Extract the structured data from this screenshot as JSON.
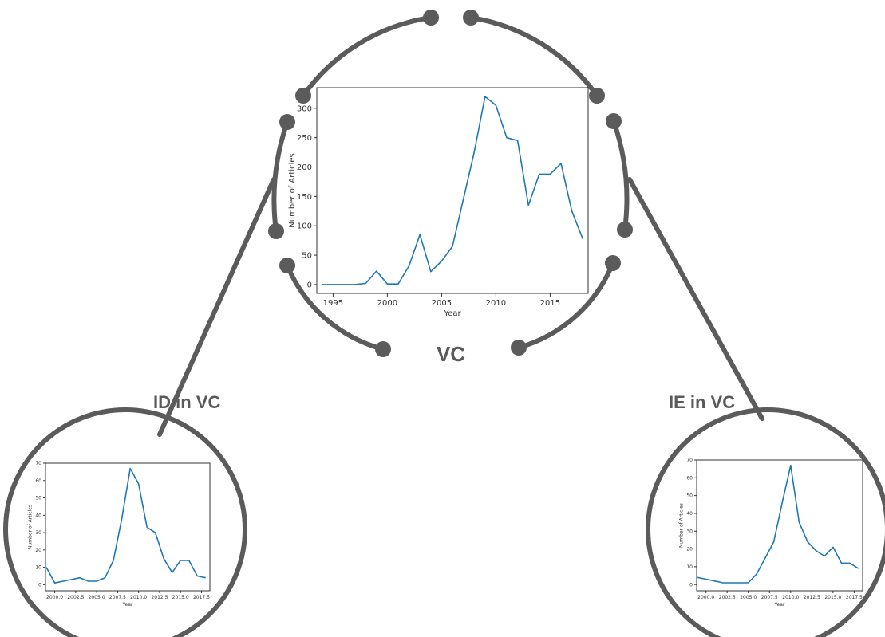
{
  "labels": {
    "main": "VC",
    "left": "ID in VC",
    "right": "IE in VC"
  },
  "colors": {
    "ring": "#5b5b5b",
    "line": "#1f77b4",
    "label": "#595959"
  },
  "chart_data": [
    {
      "id": "vc",
      "type": "line",
      "title": "",
      "xlabel": "Year",
      "ylabel": "Number of Articles",
      "xlim": [
        1993.5,
        2018.5
      ],
      "ylim": [
        -15,
        335
      ],
      "xticks": [
        1995,
        2000,
        2005,
        2010,
        2015
      ],
      "xticklabels": [
        "1995",
        "2000",
        "2005",
        "2010",
        "2015"
      ],
      "yticks": [
        0,
        50,
        100,
        150,
        200,
        250,
        300
      ],
      "yticklabels": [
        "0",
        "50",
        "100",
        "150",
        "200",
        "250",
        "300"
      ],
      "x": [
        1994,
        1995,
        1996,
        1997,
        1998,
        1999,
        2000,
        2001,
        2002,
        2003,
        2004,
        2005,
        2006,
        2007,
        2008,
        2009,
        2010,
        2011,
        2012,
        2013,
        2014,
        2015,
        2016,
        2017,
        2018
      ],
      "y": [
        0,
        0,
        0,
        0,
        2,
        23,
        1,
        1,
        32,
        85,
        22,
        40,
        65,
        145,
        225,
        320,
        305,
        250,
        245,
        135,
        188,
        188,
        206,
        125,
        78
      ]
    },
    {
      "id": "id",
      "type": "line",
      "title": "",
      "xlabel": "Year",
      "ylabel": "Number of Articles",
      "xlim": [
        1998.9,
        2018.5
      ],
      "ylim": [
        -3.5,
        70
      ],
      "xticks": [
        2000,
        2002.5,
        2005,
        2007.5,
        2010,
        2012.5,
        2015,
        2017.5
      ],
      "xticklabels": [
        "2000.0",
        "2002.5",
        "2005.0",
        "2007.5",
        "2010.0",
        "2012.5",
        "2015.0",
        "2017.5"
      ],
      "yticks": [
        0,
        10,
        20,
        30,
        40,
        50,
        60,
        70
      ],
      "yticklabels": [
        "0",
        "10",
        "20",
        "30",
        "40",
        "50",
        "60",
        "70"
      ],
      "x": [
        1999,
        2000,
        2001,
        2002,
        2003,
        2004,
        2005,
        2006,
        2007,
        2008,
        2009,
        2010,
        2011,
        2012,
        2013,
        2014,
        2015,
        2016,
        2017,
        2018
      ],
      "y": [
        10,
        1,
        2,
        3,
        4,
        2,
        2,
        4,
        14,
        38,
        67,
        58,
        33,
        30,
        15,
        7,
        14,
        14,
        5,
        4
      ]
    },
    {
      "id": "ie",
      "type": "line",
      "title": "",
      "xlabel": "Year",
      "ylabel": "Number of Articles",
      "xlim": [
        1998.9,
        2018.5
      ],
      "ylim": [
        -3.5,
        70
      ],
      "xticks": [
        2000,
        2002.5,
        2005,
        2007.5,
        2010,
        2012.5,
        2015,
        2017.5
      ],
      "xticklabels": [
        "2000.0",
        "2002.5",
        "2005.0",
        "2007.5",
        "2010.0",
        "2012.5",
        "2015.0",
        "2017.5"
      ],
      "yticks": [
        0,
        10,
        20,
        30,
        40,
        50,
        60,
        70
      ],
      "yticklabels": [
        "0",
        "10",
        "20",
        "30",
        "40",
        "50",
        "60",
        "70"
      ],
      "x": [
        1999,
        2000,
        2001,
        2002,
        2003,
        2004,
        2005,
        2006,
        2007,
        2008,
        2009,
        2010,
        2011,
        2012,
        2013,
        2014,
        2015,
        2016,
        2017,
        2018
      ],
      "y": [
        4,
        3,
        2,
        1,
        1,
        1,
        1,
        6,
        15,
        24,
        46,
        67,
        35,
        24,
        19,
        16,
        21,
        12,
        12,
        9
      ]
    }
  ]
}
